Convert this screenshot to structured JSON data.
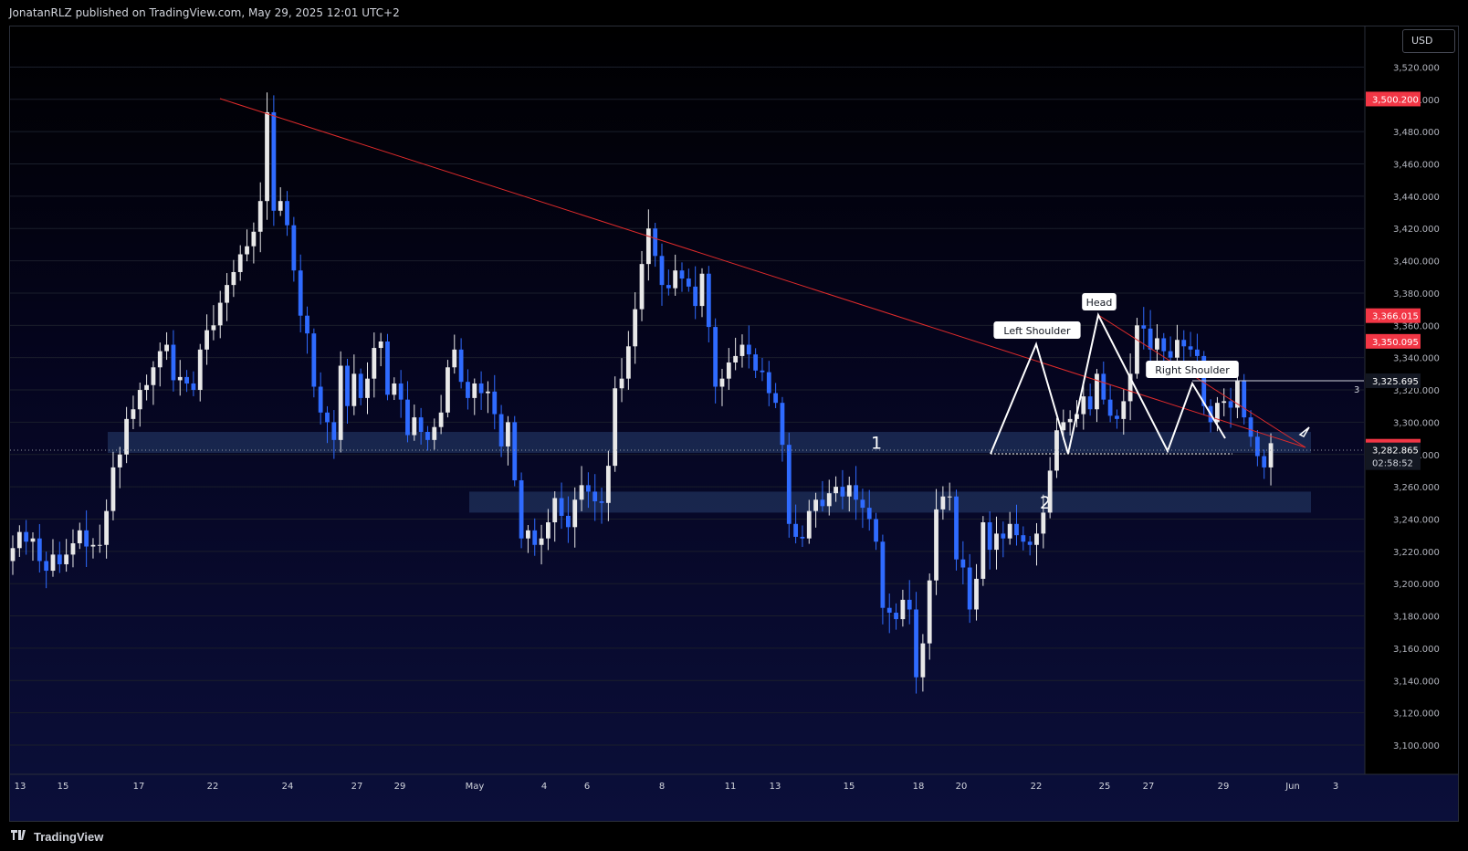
{
  "header": {
    "title": "JonatanRLZ published on TradingView.com, May 29, 2025 12:01 UTC+2"
  },
  "footer": {
    "brand": "TradingView"
  },
  "price_axis": {
    "currency": "USD"
  },
  "colors": {
    "bull": "#e8e8e8",
    "bear": "#2f6bff",
    "trendline": "#e02b2b",
    "zone": "#1c2c55",
    "pattern": "#ffffff",
    "price_tag_red": "#f23645",
    "grid": "#1a1e2b"
  },
  "chart_data": {
    "type": "candlestick",
    "title": "",
    "xlabel": "",
    "ylabel": "",
    "ylim": [
      3085,
      3540
    ],
    "y_ticks": [
      3100,
      3120,
      3140,
      3160,
      3180,
      3200,
      3220,
      3240,
      3260,
      3280,
      3300,
      3320,
      3340,
      3360,
      3380,
      3400,
      3420,
      3440,
      3460,
      3480,
      3500,
      3520
    ],
    "x_ticks": [
      "13",
      "15",
      "17",
      "22",
      "24",
      "27",
      "29",
      "May",
      "4",
      "6",
      "8",
      "11",
      "13",
      "15",
      "18",
      "20",
      "22",
      "25",
      "27",
      "29",
      "Jun",
      "3"
    ],
    "price_labels": [
      {
        "value": 3500.2,
        "text": "3,500.200",
        "style": "red"
      },
      {
        "value": 3366.015,
        "text": "3,366.015",
        "style": "red"
      },
      {
        "value": 3350.095,
        "text": "3,350.095",
        "style": "red"
      },
      {
        "value": 3325.695,
        "text": "3,325.695",
        "style": "dark"
      },
      {
        "value": 3285.122,
        "text": "3,285.122",
        "style": "red"
      },
      {
        "value": 3282.865,
        "text": "3,282.865",
        "style": "dark",
        "subtext": "02:58:52"
      }
    ],
    "zones": [
      {
        "label": "1",
        "low": 3281,
        "high": 3294
      },
      {
        "label": "2",
        "low": 3244,
        "high": 3257
      }
    ],
    "annotations": [
      "Left Shoulder",
      "Head",
      "Right Shoulder"
    ],
    "measure_label": "3",
    "close": [
      3222,
      3232,
      3226,
      3228,
      3214,
      3208,
      3218,
      3212,
      3218,
      3225,
      3233,
      3223,
      3224,
      3224,
      3245,
      3272,
      3280,
      3302,
      3308,
      3320,
      3323,
      3334,
      3344,
      3348,
      3326,
      3328,
      3324,
      3320,
      3345,
      3357,
      3360,
      3374,
      3385,
      3393,
      3404,
      3409,
      3418,
      3437,
      3492,
      3431,
      3437,
      3422,
      3394,
      3366,
      3355,
      3322,
      3306,
      3300,
      3289,
      3335,
      3310,
      3330,
      3315,
      3327,
      3346,
      3350,
      3317,
      3324,
      3314,
      3292,
      3303,
      3294,
      3289,
      3297,
      3306,
      3334,
      3345,
      3325,
      3315,
      3324,
      3318,
      3319,
      3305,
      3285,
      3300,
      3264,
      3228,
      3233,
      3224,
      3228,
      3238,
      3253,
      3242,
      3235,
      3252,
      3261,
      3257,
      3251,
      3250,
      3273,
      3321,
      3327,
      3347,
      3370,
      3398,
      3420,
      3403,
      3385,
      3383,
      3394,
      3389,
      3384,
      3372,
      3392,
      3359,
      3322,
      3327,
      3337,
      3341,
      3348,
      3342,
      3332,
      3331,
      3318,
      3312,
      3286,
      3237,
      3229,
      3228,
      3245,
      3252,
      3248,
      3256,
      3260,
      3254,
      3261,
      3252,
      3247,
      3240,
      3226,
      3185,
      3182,
      3178,
      3190,
      3184,
      3142,
      3163,
      3202,
      3246,
      3254,
      3254,
      3215,
      3210,
      3184,
      3203,
      3238,
      3221,
      3231,
      3228,
      3237,
      3230,
      3226,
      3224,
      3231,
      3244,
      3270,
      3295,
      3300,
      3302,
      3305,
      3316,
      3308,
      3330,
      3314,
      3304,
      3302,
      3313,
      3330,
      3360,
      3358,
      3345,
      3352,
      3344,
      3340,
      3351,
      3347,
      3345,
      3341,
      3310,
      3300,
      3312,
      3313,
      3309,
      3326,
      3303,
      3291,
      3279,
      3272,
      3287
    ]
  }
}
